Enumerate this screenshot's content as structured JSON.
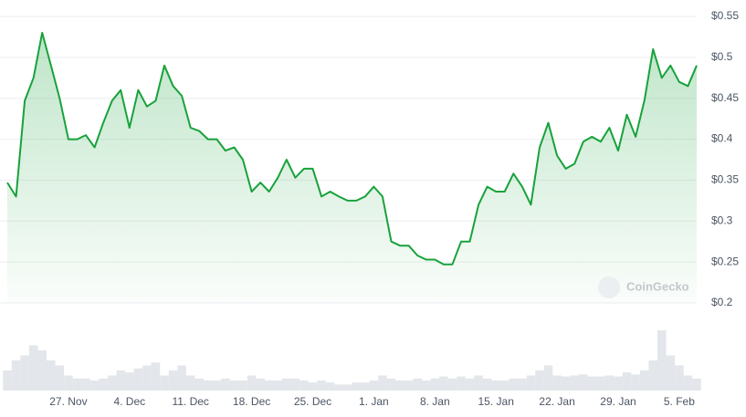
{
  "chart_data": {
    "type": "line",
    "watermark": "CoinGecko",
    "categories": [
      null,
      null,
      null,
      null,
      null,
      null,
      null,
      "27. Nov",
      null,
      null,
      null,
      null,
      null,
      null,
      "4. Dec",
      null,
      null,
      null,
      null,
      null,
      null,
      "11. Dec",
      null,
      null,
      null,
      null,
      null,
      null,
      "18. Dec",
      null,
      null,
      null,
      null,
      null,
      null,
      "25. Dec",
      null,
      null,
      null,
      null,
      null,
      null,
      "1. Jan",
      null,
      null,
      null,
      null,
      null,
      null,
      "8. Jan",
      null,
      null,
      null,
      null,
      null,
      null,
      "15. Jan",
      null,
      null,
      null,
      null,
      null,
      null,
      "22. Jan",
      null,
      null,
      null,
      null,
      null,
      null,
      "29. Jan",
      null,
      null,
      null,
      null,
      null,
      null,
      "5. Feb",
      null,
      null
    ],
    "series": [
      {
        "color": "#18a23b",
        "values": [
          0.347,
          0.33,
          0.447,
          0.475,
          0.53,
          0.49,
          0.45,
          0.4,
          0.4,
          0.405,
          0.39,
          0.42,
          0.447,
          0.46,
          0.414,
          0.46,
          0.44,
          0.447,
          0.49,
          0.465,
          0.453,
          0.414,
          0.41,
          0.4,
          0.4,
          0.386,
          0.39,
          0.375,
          0.336,
          0.347,
          0.336,
          0.353,
          0.375,
          0.353,
          0.364,
          0.364,
          0.33,
          0.336,
          0.33,
          0.325,
          0.325,
          0.33,
          0.342,
          0.33,
          0.275,
          0.27,
          0.27,
          0.258,
          0.253,
          0.253,
          0.247,
          0.247,
          0.275,
          0.275,
          0.32,
          0.342,
          0.336,
          0.336,
          0.358,
          0.342,
          0.32,
          0.39,
          0.42,
          0.38,
          0.364,
          0.37,
          0.397,
          0.403,
          0.397,
          0.414,
          0.386,
          0.43,
          0.403,
          0.447,
          0.51,
          0.475,
          0.49,
          0.47,
          0.465,
          0.49
        ]
      },
      {
        "type": "bar",
        "color": "#e3e6ea",
        "values": [
          20,
          30,
          35,
          45,
          40,
          30,
          25,
          15,
          12,
          12,
          10,
          12,
          15,
          20,
          18,
          22,
          25,
          28,
          15,
          20,
          25,
          15,
          12,
          10,
          10,
          12,
          10,
          10,
          15,
          12,
          10,
          10,
          12,
          12,
          10,
          8,
          10,
          8,
          6,
          6,
          8,
          8,
          10,
          15,
          12,
          10,
          10,
          12,
          10,
          12,
          14,
          12,
          14,
          12,
          15,
          12,
          10,
          10,
          12,
          12,
          15,
          20,
          25,
          15,
          14,
          15,
          16,
          14,
          14,
          15,
          14,
          18,
          16,
          20,
          30,
          60,
          35,
          25,
          15,
          12
        ]
      }
    ],
    "ylim": [
      0.2,
      0.55
    ],
    "yticks": [
      {
        "value": 0.2,
        "label": "$0.2"
      },
      {
        "value": 0.25,
        "label": "$0.25"
      },
      {
        "value": 0.3,
        "label": "$0.3"
      },
      {
        "value": 0.35,
        "label": "$0.35"
      },
      {
        "value": 0.4,
        "label": "$0.4"
      },
      {
        "value": 0.45,
        "label": "$0.45"
      },
      {
        "value": 0.5,
        "label": "$0.5"
      },
      {
        "value": 0.55,
        "label": "$0.55"
      }
    ],
    "grid": true
  }
}
